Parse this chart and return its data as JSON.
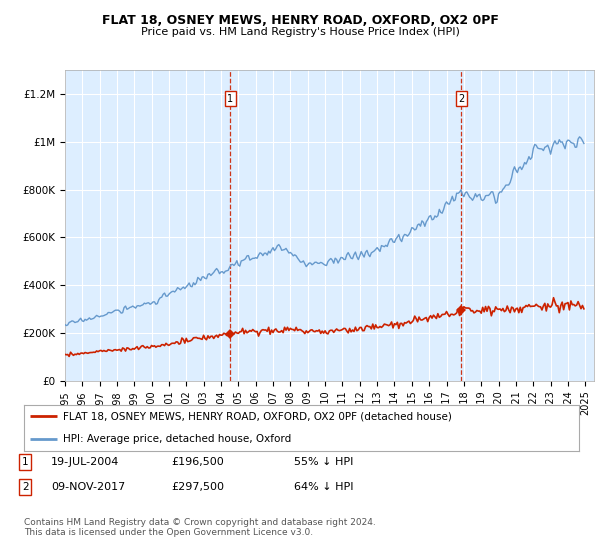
{
  "title": "FLAT 18, OSNEY MEWS, HENRY ROAD, OXFORD, OX2 0PF",
  "subtitle": "Price paid vs. HM Land Registry's House Price Index (HPI)",
  "background_color": "#ddeeff",
  "plot_bg_color": "#ddeeff",
  "hpi_color": "#6699cc",
  "price_color": "#cc2200",
  "sale1_date": 2004.54,
  "sale1_price": 196500,
  "sale1_label": "1",
  "sale2_date": 2017.86,
  "sale2_price": 297500,
  "sale2_label": "2",
  "ylim_min": 0,
  "ylim_max": 1300000,
  "xlim_min": 1995.0,
  "xlim_max": 2025.5,
  "legend_price_label": "FLAT 18, OSNEY MEWS, HENRY ROAD, OXFORD, OX2 0PF (detached house)",
  "legend_hpi_label": "HPI: Average price, detached house, Oxford",
  "footnote": "Contains HM Land Registry data © Crown copyright and database right 2024.\nThis data is licensed under the Open Government Licence v3.0.",
  "yticks": [
    0,
    200000,
    400000,
    600000,
    800000,
    1000000,
    1200000
  ],
  "ytick_labels": [
    "£0",
    "£200K",
    "£400K",
    "£600K",
    "£800K",
    "£1M",
    "£1.2M"
  ],
  "xticks": [
    1995,
    1996,
    1997,
    1998,
    1999,
    2000,
    2001,
    2002,
    2003,
    2004,
    2005,
    2006,
    2007,
    2008,
    2009,
    2010,
    2011,
    2012,
    2013,
    2014,
    2015,
    2016,
    2017,
    2018,
    2019,
    2020,
    2021,
    2022,
    2023,
    2024,
    2025
  ]
}
